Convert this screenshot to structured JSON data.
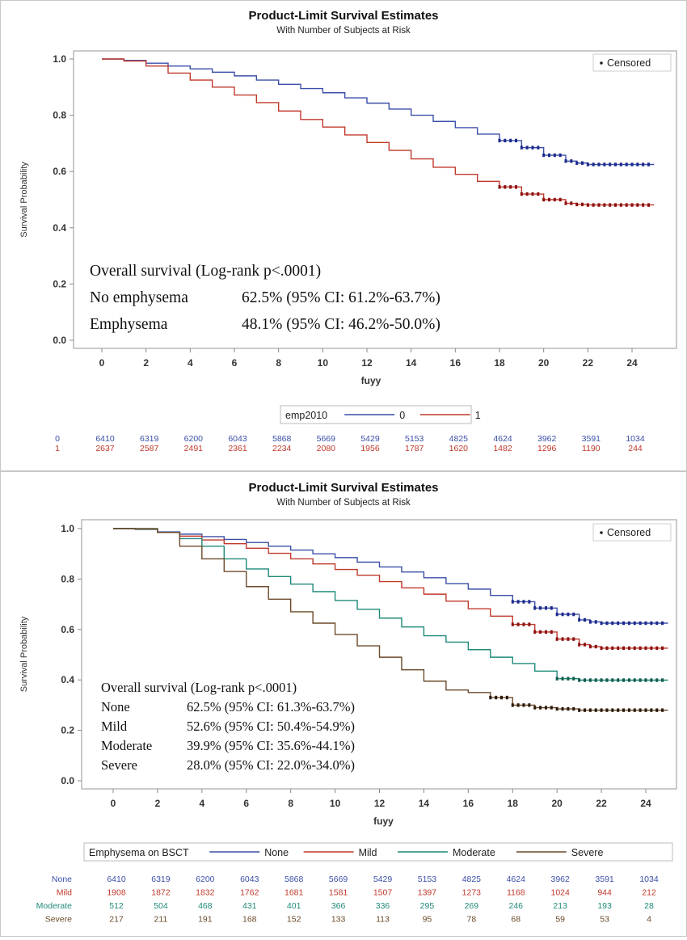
{
  "chart_data": [
    {
      "type": "line",
      "title": "Product-Limit Survival Estimates",
      "subtitle": "With Number of Subjects at Risk",
      "xlabel": "fuyy",
      "ylabel": "Survival Probability",
      "xlim": [
        0,
        25
      ],
      "ylim": [
        0,
        1
      ],
      "xticks": [
        "0",
        "2",
        "4",
        "6",
        "8",
        "10",
        "12",
        "14",
        "16",
        "18",
        "20",
        "22",
        "24"
      ],
      "yticks": [
        "0.0",
        "0.2",
        "0.4",
        "0.6",
        "0.8",
        "1.0"
      ],
      "censored_legend": "Censored",
      "legend_title": "emp2010",
      "legend_position": "bottom",
      "series": [
        {
          "name": "0",
          "color": "#3b4fa8",
          "censor_color": "#1c2a8c",
          "censor_from": 18,
          "x": [
            0,
            1,
            2,
            3,
            4,
            5,
            6,
            7,
            8,
            9,
            10,
            11,
            12,
            13,
            14,
            15,
            16,
            17,
            18,
            19,
            20,
            21,
            21.5,
            22,
            25
          ],
          "y": [
            1.0,
            0.995,
            0.985,
            0.975,
            0.965,
            0.953,
            0.94,
            0.925,
            0.91,
            0.895,
            0.88,
            0.862,
            0.843,
            0.822,
            0.8,
            0.778,
            0.756,
            0.733,
            0.71,
            0.685,
            0.658,
            0.637,
            0.63,
            0.625,
            0.625
          ]
        },
        {
          "name": "1",
          "color": "#c0392b",
          "censor_color": "#8b1010",
          "censor_from": 18,
          "x": [
            0,
            1,
            2,
            3,
            4,
            5,
            6,
            7,
            8,
            9,
            10,
            11,
            12,
            13,
            14,
            15,
            16,
            17,
            18,
            19,
            20,
            21,
            21.5,
            22,
            25
          ],
          "y": [
            1.0,
            0.993,
            0.975,
            0.95,
            0.925,
            0.9,
            0.872,
            0.845,
            0.815,
            0.785,
            0.758,
            0.73,
            0.703,
            0.675,
            0.645,
            0.615,
            0.59,
            0.565,
            0.545,
            0.52,
            0.5,
            0.487,
            0.483,
            0.481,
            0.481
          ]
        }
      ],
      "annotation": {
        "header": "Overall survival  (Log-rank  p<.0001)",
        "rows": [
          {
            "label": "No emphysema",
            "value": "62.5% (95% CI: 61.2%-63.7%)"
          },
          {
            "label": "Emphysema",
            "value": "48.1% (95% CI: 46.2%-50.0%)"
          }
        ]
      },
      "risk_table": {
        "rows": [
          {
            "label": "0",
            "color": "#3b4fa8",
            "values": [
              "6410",
              "6319",
              "6200",
              "6043",
              "5868",
              "5669",
              "5429",
              "5153",
              "4825",
              "4624",
              "3962",
              "3591",
              "1034"
            ]
          },
          {
            "label": "1",
            "color": "#c0392b",
            "values": [
              "2637",
              "2587",
              "2491",
              "2361",
              "2234",
              "2080",
              "1956",
              "1787",
              "1620",
              "1482",
              "1296",
              "1190",
              "244"
            ]
          }
        ]
      }
    },
    {
      "type": "line",
      "title": "Product-Limit Survival Estimates",
      "subtitle": "With Number of Subjects at Risk",
      "xlabel": "fuyy",
      "ylabel": "Survival Probability",
      "xlim": [
        0,
        25
      ],
      "ylim": [
        0,
        1
      ],
      "xticks": [
        "0",
        "2",
        "4",
        "6",
        "8",
        "10",
        "12",
        "14",
        "16",
        "18",
        "20",
        "22",
        "24"
      ],
      "yticks": [
        "0.0",
        "0.2",
        "0.4",
        "0.6",
        "0.8",
        "1.0"
      ],
      "censored_legend": "Censored",
      "legend_title": "Emphysema on BSCT",
      "legend_position": "bottom",
      "series": [
        {
          "name": "None",
          "color": "#3b4fa8",
          "censor_color": "#1c2a8c",
          "censor_from": 18,
          "x": [
            0,
            1,
            2,
            3,
            4,
            5,
            6,
            7,
            8,
            9,
            10,
            11,
            12,
            13,
            14,
            15,
            16,
            17,
            18,
            19,
            20,
            21,
            21.5,
            22,
            25
          ],
          "y": [
            1.0,
            0.997,
            0.987,
            0.978,
            0.968,
            0.957,
            0.945,
            0.93,
            0.915,
            0.9,
            0.885,
            0.867,
            0.848,
            0.828,
            0.805,
            0.782,
            0.76,
            0.735,
            0.71,
            0.685,
            0.66,
            0.638,
            0.63,
            0.625,
            0.625
          ]
        },
        {
          "name": "Mild",
          "color": "#c0392b",
          "censor_color": "#8b1010",
          "censor_from": 18,
          "x": [
            0,
            1,
            2,
            3,
            4,
            5,
            6,
            7,
            8,
            9,
            10,
            11,
            12,
            13,
            14,
            15,
            16,
            17,
            18,
            19,
            20,
            21,
            21.5,
            22,
            25
          ],
          "y": [
            1.0,
            0.997,
            0.985,
            0.97,
            0.955,
            0.94,
            0.922,
            0.902,
            0.88,
            0.86,
            0.838,
            0.815,
            0.79,
            0.765,
            0.74,
            0.712,
            0.682,
            0.653,
            0.62,
            0.59,
            0.562,
            0.54,
            0.532,
            0.526,
            0.526
          ]
        },
        {
          "name": "Moderate",
          "color": "#1f8a7a",
          "censor_color": "#0f5a4a",
          "censor_from": 20,
          "x": [
            0,
            1,
            2,
            3,
            4,
            5,
            6,
            7,
            8,
            9,
            10,
            11,
            12,
            13,
            14,
            15,
            16,
            17,
            18,
            19,
            20,
            21,
            22,
            25
          ],
          "y": [
            1.0,
            0.998,
            0.985,
            0.96,
            0.93,
            0.88,
            0.84,
            0.81,
            0.78,
            0.75,
            0.715,
            0.68,
            0.645,
            0.61,
            0.575,
            0.55,
            0.52,
            0.49,
            0.465,
            0.435,
            0.405,
            0.399,
            0.399,
            0.399
          ]
        },
        {
          "name": "Severe",
          "color": "#6b4a2a",
          "censor_color": "#2a1a0a",
          "censor_from": 17,
          "x": [
            0,
            1,
            2,
            3,
            4,
            5,
            6,
            7,
            8,
            9,
            10,
            11,
            12,
            13,
            14,
            15,
            16,
            17,
            18,
            19,
            20,
            21,
            22,
            25
          ],
          "y": [
            1.0,
            1.0,
            0.985,
            0.93,
            0.88,
            0.83,
            0.77,
            0.72,
            0.67,
            0.625,
            0.58,
            0.535,
            0.49,
            0.44,
            0.395,
            0.36,
            0.35,
            0.33,
            0.3,
            0.29,
            0.285,
            0.28,
            0.28,
            0.28
          ]
        }
      ],
      "annotation": {
        "header": "Overall survival (Log-rank p<.0001)",
        "rows": [
          {
            "label": "None",
            "value": "62.5% (95% CI: 61.3%-63.7%)"
          },
          {
            "label": "Mild",
            "value": "52.6% (95% CI: 50.4%-54.9%)"
          },
          {
            "label": "Moderate",
            "value": "39.9% (95% CI: 35.6%-44.1%)"
          },
          {
            "label": "Severe",
            "value": "28.0% (95% CI: 22.0%-34.0%)"
          }
        ]
      },
      "risk_table": {
        "rows": [
          {
            "label": "None",
            "color": "#3b4fa8",
            "values": [
              "6410",
              "6319",
              "6200",
              "6043",
              "5868",
              "5669",
              "5429",
              "5153",
              "4825",
              "4624",
              "3962",
              "3591",
              "1034"
            ]
          },
          {
            "label": "Mild",
            "color": "#c0392b",
            "values": [
              "1908",
              "1872",
              "1832",
              "1762",
              "1681",
              "1581",
              "1507",
              "1397",
              "1273",
              "1168",
              "1024",
              "944",
              "212"
            ]
          },
          {
            "label": "Moderate",
            "color": "#1f8a7a",
            "values": [
              "512",
              "504",
              "468",
              "431",
              "401",
              "366",
              "336",
              "295",
              "269",
              "246",
              "213",
              "193",
              "28"
            ]
          },
          {
            "label": "Severe",
            "color": "#6b4a2a",
            "values": [
              "217",
              "211",
              "191",
              "168",
              "152",
              "133",
              "113",
              "95",
              "78",
              "68",
              "59",
              "53",
              "4"
            ]
          }
        ]
      }
    }
  ]
}
